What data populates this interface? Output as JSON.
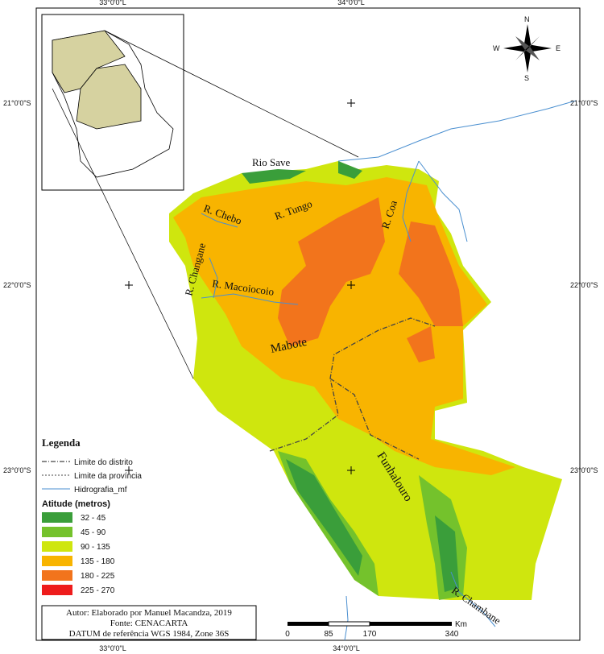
{
  "graticule": {
    "top": [
      "33°0'0\"L",
      "34°0'0\"L"
    ],
    "bottom": [
      "33°0'0\"L",
      "34°0'0\"L"
    ],
    "left": [
      "21°0'0\"S",
      "22°0'0\"S",
      "23°0'0\"S"
    ],
    "right": [
      "21°0'0\"S",
      "22°0'0\"S",
      "23°0'0\"S"
    ]
  },
  "north_arrow": {
    "n": "N",
    "s": "S",
    "e": "E",
    "w": "W"
  },
  "places": [
    "Rio Save",
    "R. Chebo",
    "R. Tungo",
    "R. Coa",
    "R. Changane",
    "R. Macoiocoio",
    "Mabote",
    "Funhalouro",
    "R. Chambane"
  ],
  "legend": {
    "title": "Legenda",
    "lines": [
      "Limite do distrito",
      "Limite da província",
      "Hidrografia_mf"
    ],
    "altitude_title": "Atitude (metros)",
    "classes": [
      {
        "label": "32 - 45",
        "color": "#3a9e3a"
      },
      {
        "label": "45 - 90",
        "color": "#74c22c"
      },
      {
        "label": "90 - 135",
        "color": "#cfe60e"
      },
      {
        "label": "135 - 180",
        "color": "#f8b400"
      },
      {
        "label": "180 - 225",
        "color": "#f2741c"
      },
      {
        "label": "225 - 270",
        "color": "#ee1c1c"
      }
    ]
  },
  "credits": [
    "Autor: Elaborado por Manuel Macandza, 2019",
    "Fonte: CENACARTA",
    "DATUM de referência WGS 1984, Zone 36S"
  ],
  "scale_bar": {
    "labels": [
      0,
      85,
      170,
      340
    ],
    "unit": "Km"
  }
}
